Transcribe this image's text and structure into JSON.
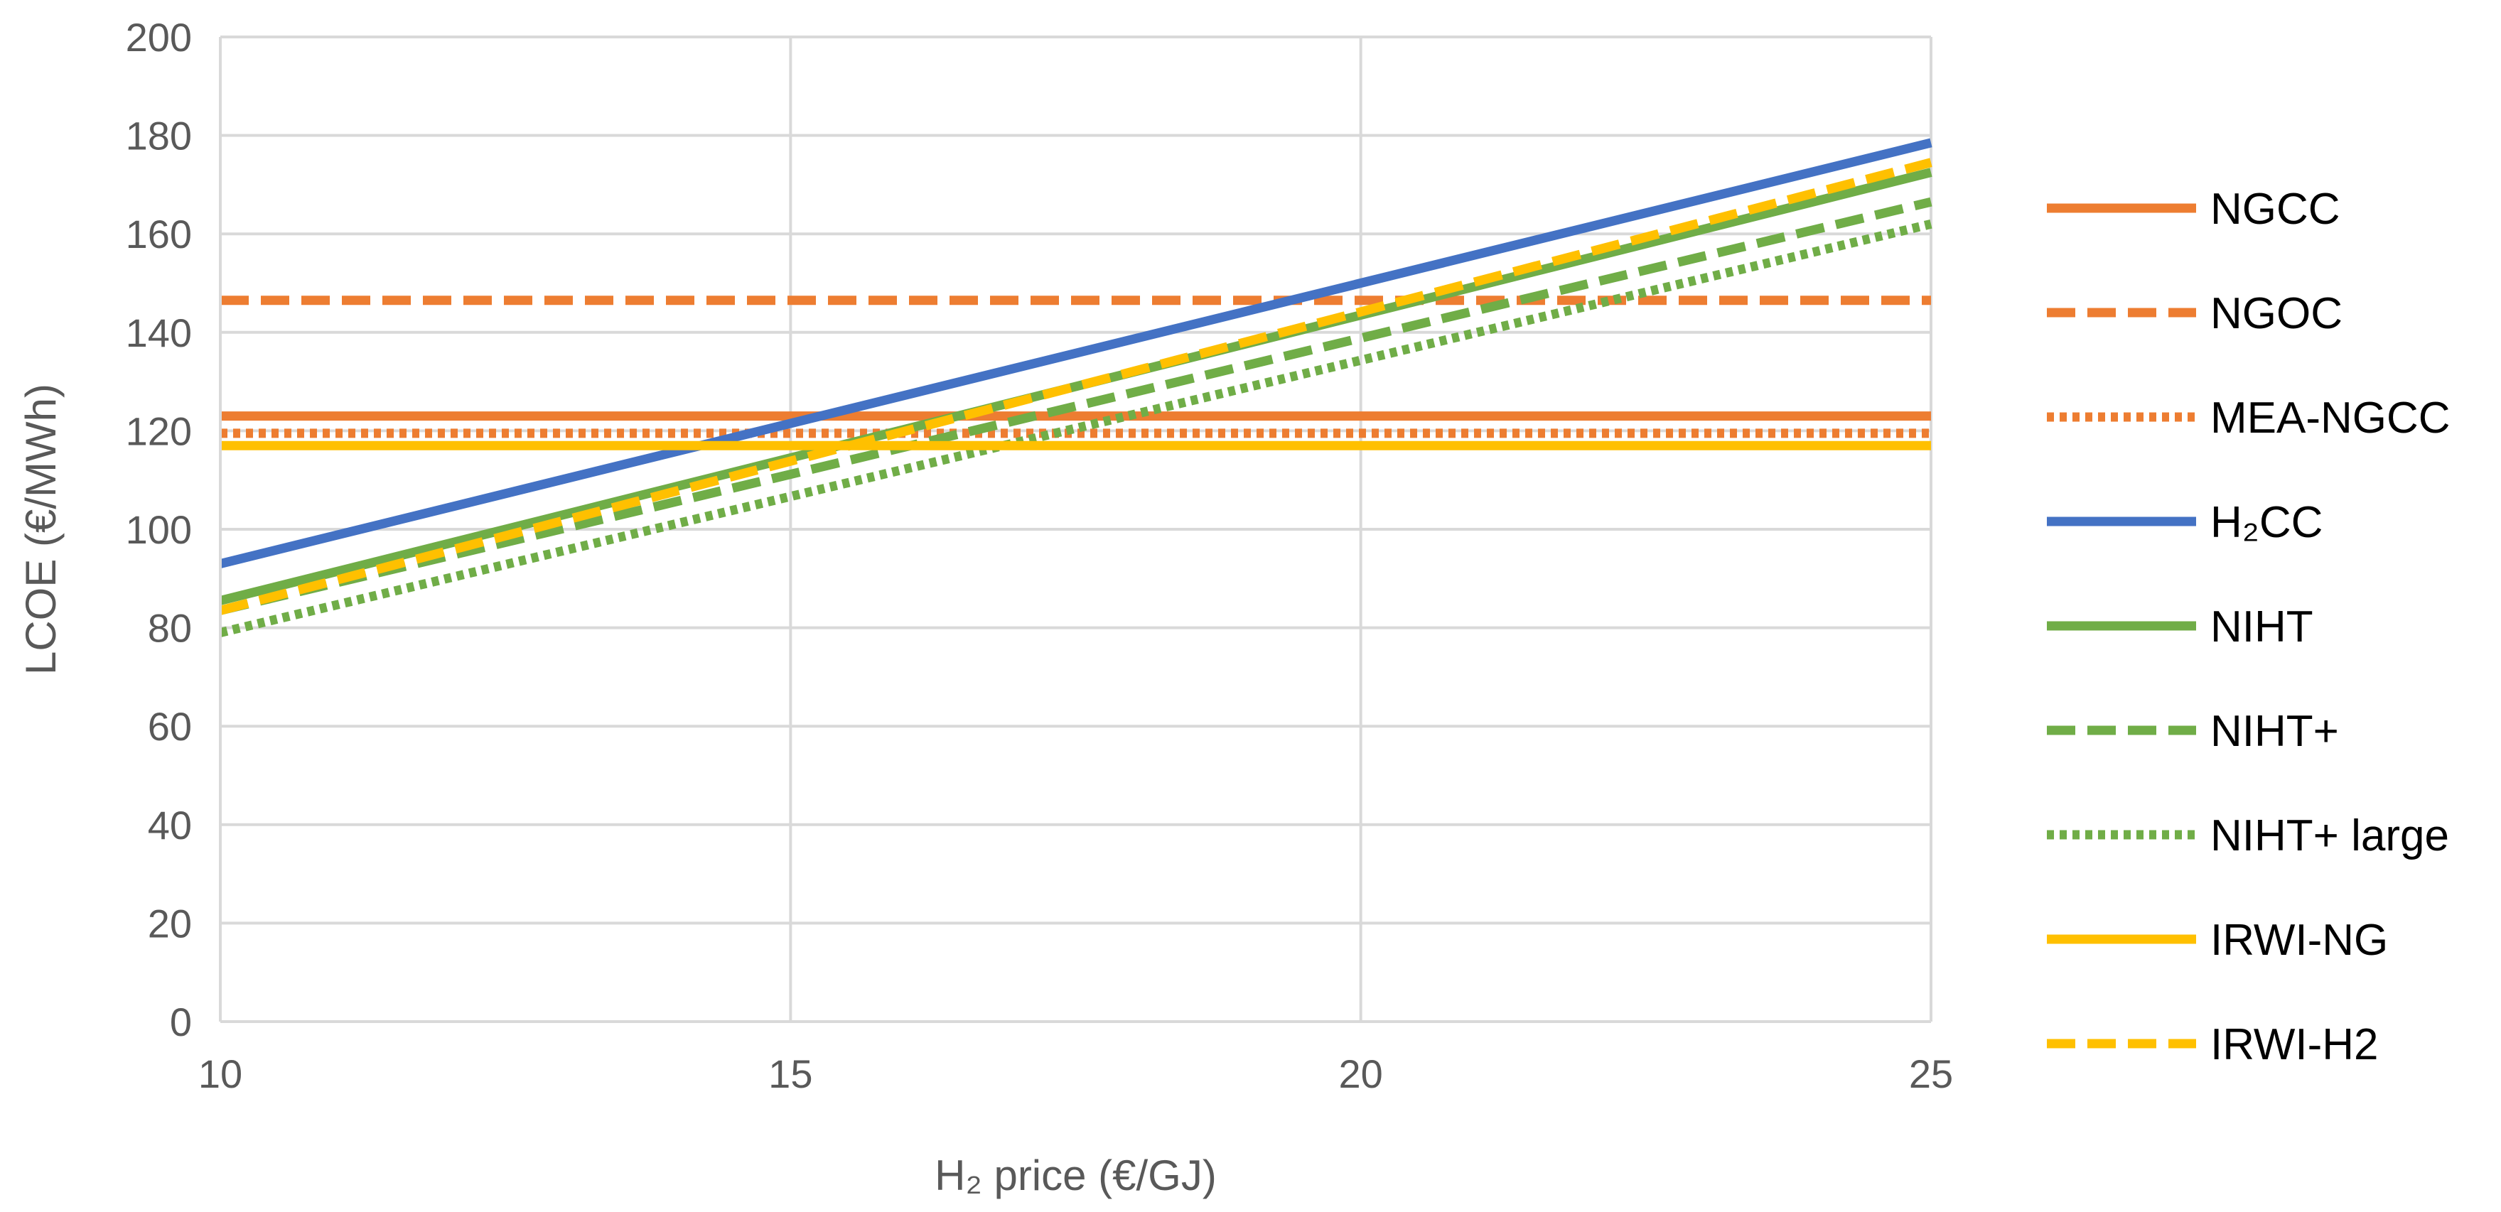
{
  "chart_data": {
    "type": "line",
    "xlabel": "H₂ price (€/GJ)",
    "ylabel": "LCOE (€/MWh)",
    "xlim": [
      10,
      25
    ],
    "ylim": [
      0,
      200
    ],
    "x_ticks": [
      10,
      15,
      20,
      25
    ],
    "y_ticks": [
      0,
      20,
      40,
      60,
      80,
      100,
      120,
      140,
      160,
      180,
      200
    ],
    "grid": true,
    "legend_position": "right",
    "series": [
      {
        "name": "NGCC",
        "color": "#ED7D31",
        "style": "solid",
        "x": [
          10,
          25
        ],
        "y": [
          123,
          123
        ]
      },
      {
        "name": "NGOC",
        "color": "#ED7D31",
        "style": "dashed",
        "x": [
          10,
          25
        ],
        "y": [
          146.5,
          146.5
        ]
      },
      {
        "name": "MEA-NGCC",
        "color": "#ED7D31",
        "style": "dotted",
        "x": [
          10,
          25
        ],
        "y": [
          119.5,
          119.5
        ]
      },
      {
        "name": "H₂CC",
        "color": "#4472C4",
        "style": "solid",
        "x": [
          10,
          25
        ],
        "y": [
          93,
          178.5
        ]
      },
      {
        "name": "NIHT",
        "color": "#70AD47",
        "style": "solid",
        "x": [
          10,
          25
        ],
        "y": [
          85.5,
          172.5
        ]
      },
      {
        "name": "NIHT+",
        "color": "#70AD47",
        "style": "dashed",
        "x": [
          10,
          25
        ],
        "y": [
          83.5,
          166.5
        ]
      },
      {
        "name": "NIHT+ large",
        "color": "#70AD47",
        "style": "dotted",
        "x": [
          10,
          25
        ],
        "y": [
          79,
          162
        ]
      },
      {
        "name": "IRWI-NG",
        "color": "#FFC000",
        "style": "solid",
        "x": [
          10,
          25
        ],
        "y": [
          117,
          117
        ]
      },
      {
        "name": "IRWI-H2",
        "color": "#FFC000",
        "style": "dashed",
        "x": [
          10,
          25
        ],
        "y": [
          83.5,
          174.5
        ]
      }
    ]
  }
}
